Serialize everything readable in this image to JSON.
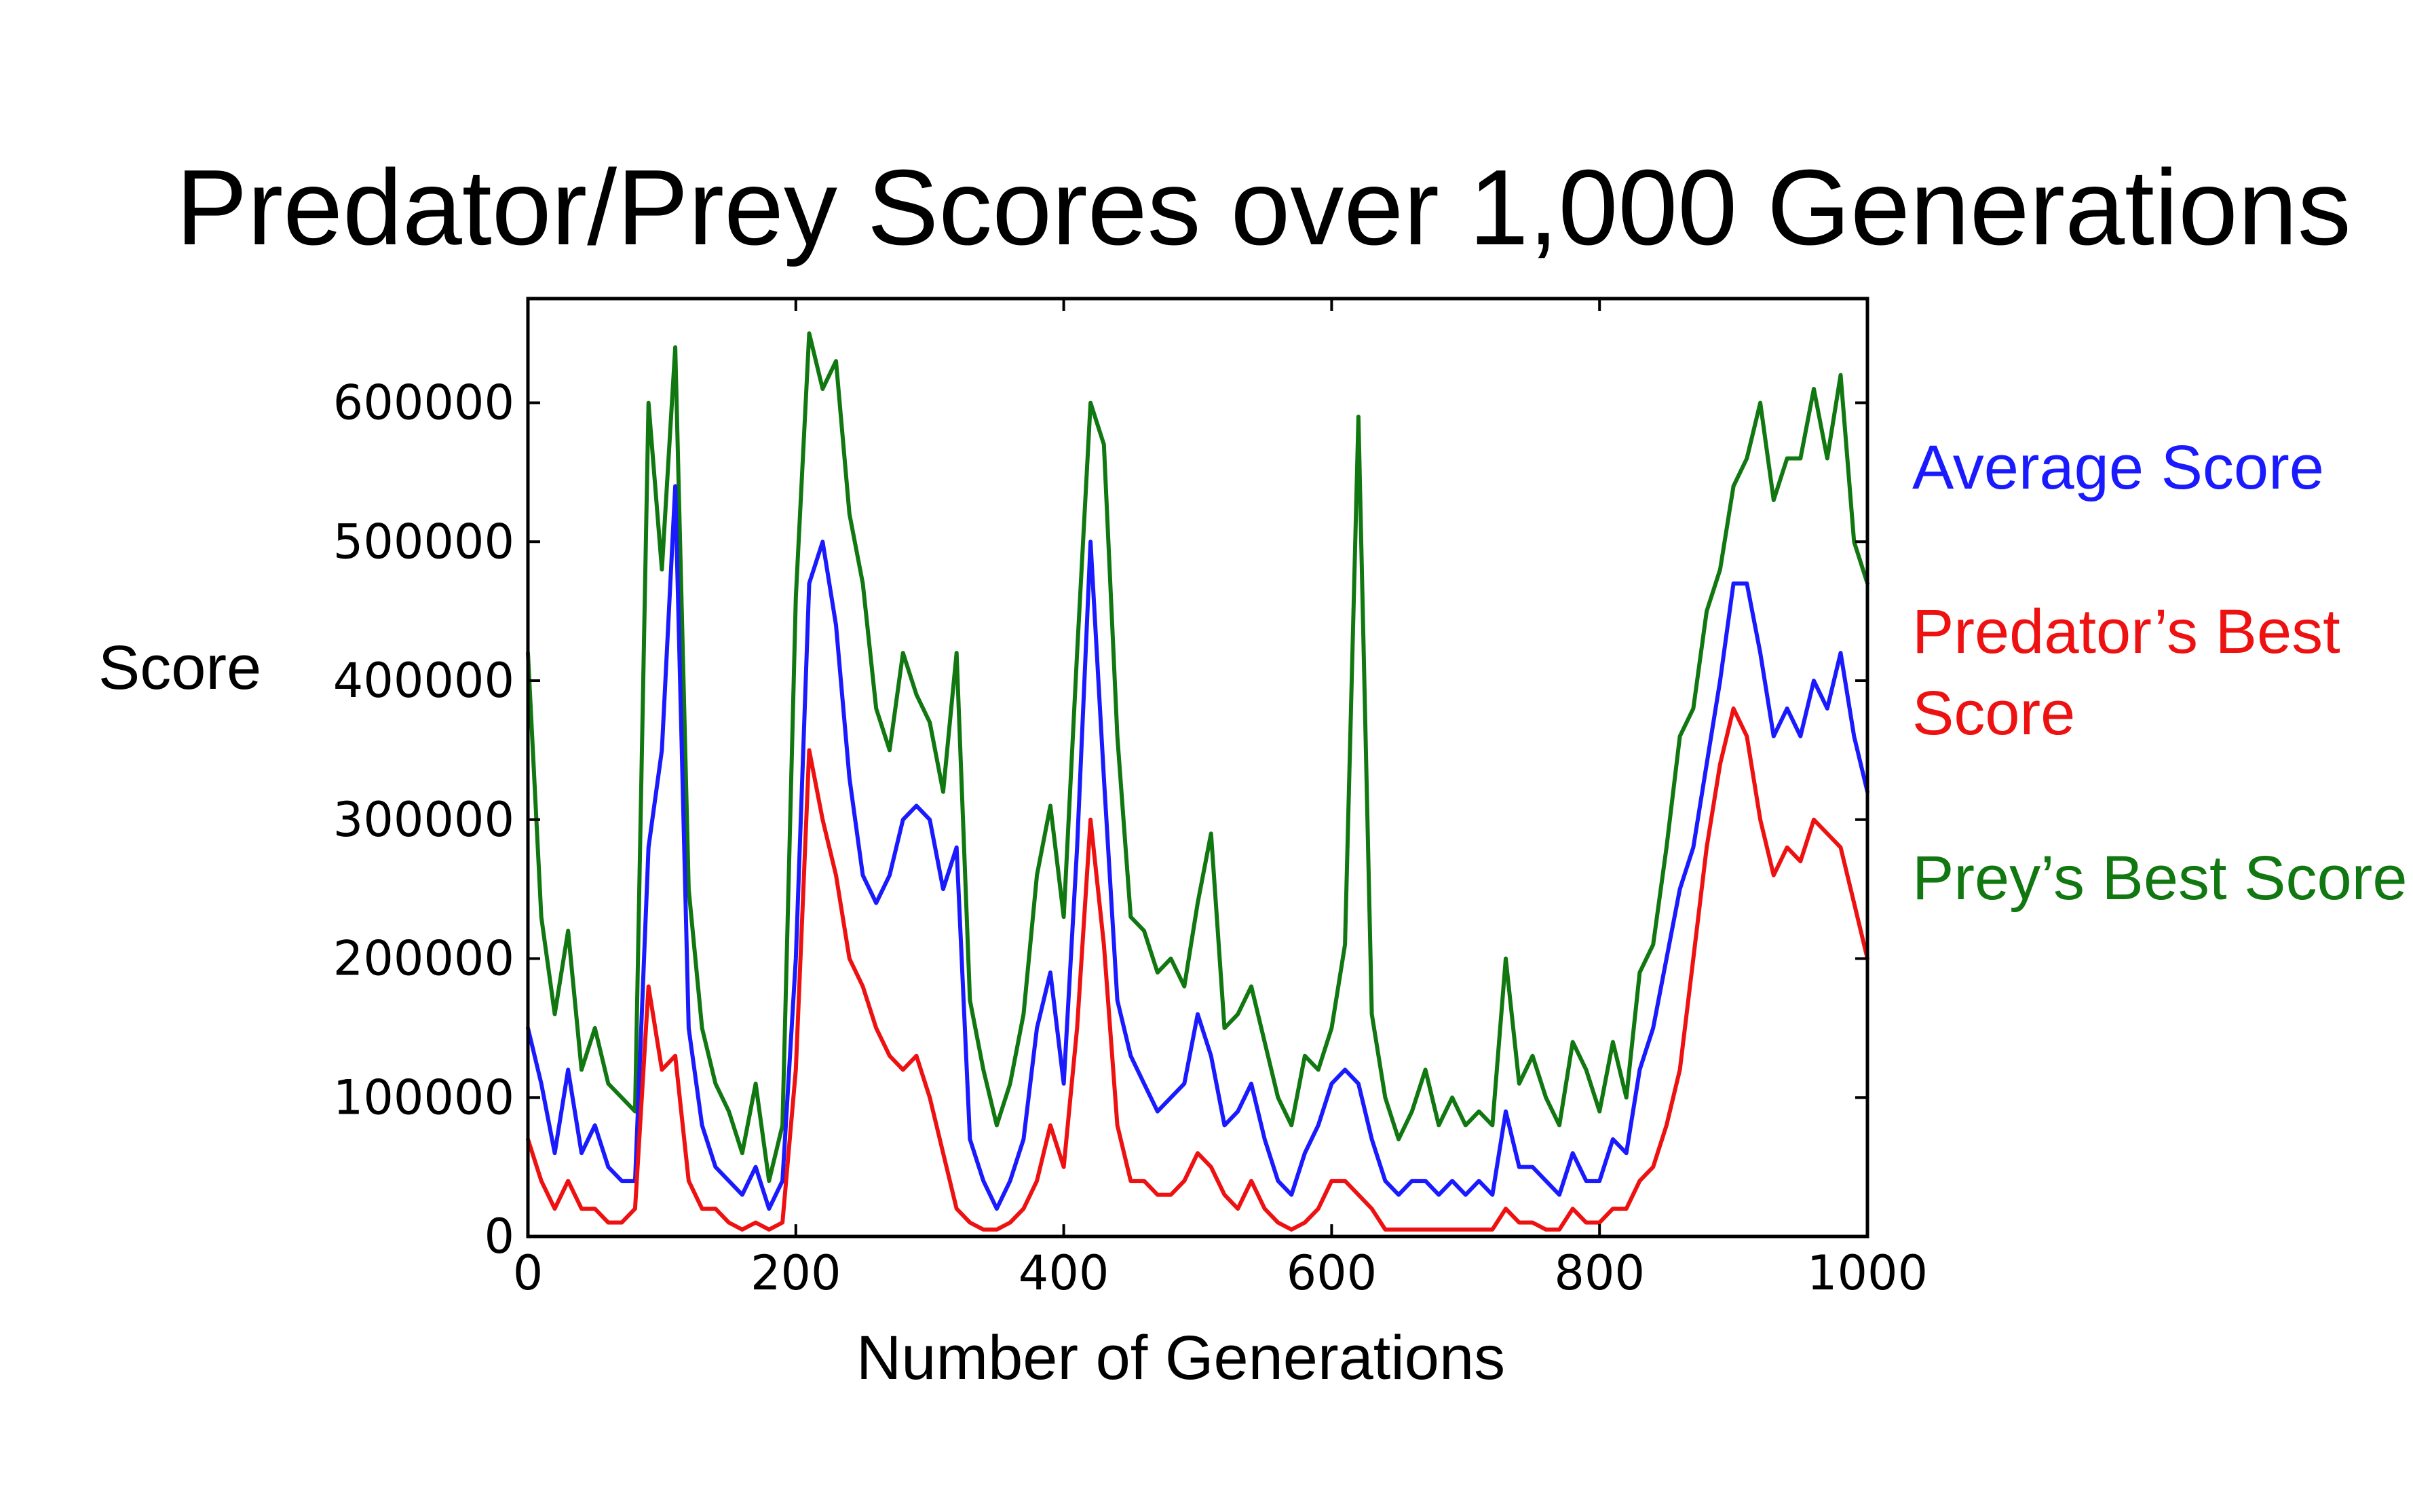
{
  "chart_data": {
    "type": "line",
    "title": "Predator/Prey Scores over 1,000 Generations",
    "xlabel": "Number of Generations",
    "ylabel": "Score",
    "xlim": [
      0,
      1000
    ],
    "ylim": [
      0,
      675000
    ],
    "x_ticks": [
      0,
      200,
      400,
      600,
      800,
      1000
    ],
    "y_ticks": [
      0,
      100000,
      200000,
      300000,
      400000,
      500000,
      600000
    ],
    "x_tick_labels": [
      "0",
      "200",
      "400",
      "600",
      "800",
      "1000"
    ],
    "y_tick_labels": [
      "0",
      "100000",
      "200000",
      "300000",
      "400000",
      "500000",
      "600000"
    ],
    "grid": false,
    "legend_position": "right",
    "legend": [
      {
        "label": "Average Score",
        "color": "#1a1aff"
      },
      {
        "label": "Predator’s Best Score",
        "color": "#ee1111"
      },
      {
        "label": "Prey’s Best Score",
        "color": "#117711"
      }
    ],
    "x": [
      0,
      10,
      20,
      30,
      40,
      50,
      60,
      70,
      80,
      90,
      100,
      110,
      120,
      130,
      140,
      150,
      160,
      170,
      180,
      190,
      200,
      210,
      220,
      230,
      240,
      250,
      260,
      270,
      280,
      290,
      300,
      310,
      320,
      330,
      340,
      350,
      360,
      370,
      380,
      390,
      400,
      410,
      420,
      430,
      440,
      450,
      460,
      470,
      480,
      490,
      500,
      510,
      520,
      530,
      540,
      550,
      560,
      570,
      580,
      590,
      600,
      610,
      620,
      630,
      640,
      650,
      660,
      670,
      680,
      690,
      700,
      710,
      720,
      730,
      740,
      750,
      760,
      770,
      780,
      790,
      800,
      810,
      820,
      830,
      840,
      850,
      860,
      870,
      880,
      890,
      900,
      910,
      920,
      930,
      940,
      950,
      960,
      970,
      980,
      990,
      1000
    ],
    "series": [
      {
        "name": "Prey’s Best Score",
        "color": "#117711",
        "values": [
          420000,
          230000,
          160000,
          220000,
          120000,
          150000,
          110000,
          100000,
          90000,
          600000,
          480000,
          640000,
          250000,
          150000,
          110000,
          90000,
          60000,
          110000,
          40000,
          80000,
          460000,
          650000,
          610000,
          630000,
          520000,
          470000,
          380000,
          350000,
          420000,
          390000,
          370000,
          320000,
          420000,
          170000,
          120000,
          80000,
          110000,
          160000,
          260000,
          310000,
          230000,
          420000,
          600000,
          570000,
          360000,
          230000,
          220000,
          190000,
          200000,
          180000,
          240000,
          290000,
          150000,
          160000,
          180000,
          140000,
          100000,
          80000,
          130000,
          120000,
          150000,
          210000,
          590000,
          160000,
          100000,
          70000,
          90000,
          120000,
          80000,
          100000,
          80000,
          90000,
          80000,
          200000,
          110000,
          130000,
          100000,
          80000,
          140000,
          120000,
          90000,
          140000,
          100000,
          190000,
          210000,
          280000,
          360000,
          380000,
          450000,
          480000,
          540000,
          560000,
          600000,
          530000,
          560000,
          560000,
          610000,
          560000,
          620000,
          500000,
          470000
        ]
      },
      {
        "name": "Average Score",
        "color": "#1a1aff",
        "values": [
          150000,
          110000,
          60000,
          120000,
          60000,
          80000,
          50000,
          40000,
          40000,
          280000,
          350000,
          540000,
          150000,
          80000,
          50000,
          40000,
          30000,
          50000,
          20000,
          40000,
          200000,
          470000,
          500000,
          440000,
          330000,
          260000,
          240000,
          260000,
          300000,
          310000,
          300000,
          250000,
          280000,
          70000,
          40000,
          20000,
          40000,
          70000,
          150000,
          190000,
          110000,
          280000,
          500000,
          330000,
          170000,
          130000,
          110000,
          90000,
          100000,
          110000,
          160000,
          130000,
          80000,
          90000,
          110000,
          70000,
          40000,
          30000,
          60000,
          80000,
          110000,
          120000,
          110000,
          70000,
          40000,
          30000,
          40000,
          40000,
          30000,
          40000,
          30000,
          40000,
          30000,
          90000,
          50000,
          50000,
          40000,
          30000,
          60000,
          40000,
          40000,
          70000,
          60000,
          120000,
          150000,
          200000,
          250000,
          280000,
          340000,
          400000,
          470000,
          470000,
          420000,
          360000,
          380000,
          360000,
          400000,
          380000,
          420000,
          360000,
          320000
        ]
      },
      {
        "name": "Predator’s Best Score",
        "color": "#ee1111",
        "values": [
          70000,
          40000,
          20000,
          40000,
          20000,
          20000,
          10000,
          10000,
          20000,
          180000,
          120000,
          130000,
          40000,
          20000,
          20000,
          10000,
          5000,
          10000,
          5000,
          10000,
          120000,
          350000,
          300000,
          260000,
          200000,
          180000,
          150000,
          130000,
          120000,
          130000,
          100000,
          60000,
          20000,
          10000,
          5000,
          5000,
          10000,
          20000,
          40000,
          80000,
          50000,
          150000,
          300000,
          210000,
          80000,
          40000,
          40000,
          30000,
          30000,
          40000,
          60000,
          50000,
          30000,
          20000,
          40000,
          20000,
          10000,
          5000,
          10000,
          20000,
          40000,
          40000,
          30000,
          20000,
          5000,
          5000,
          5000,
          5000,
          5000,
          5000,
          5000,
          5000,
          5000,
          20000,
          10000,
          10000,
          5000,
          5000,
          20000,
          10000,
          10000,
          20000,
          20000,
          40000,
          50000,
          80000,
          120000,
          200000,
          280000,
          340000,
          380000,
          360000,
          300000,
          260000,
          280000,
          270000,
          300000,
          290000,
          280000,
          240000,
          200000
        ]
      }
    ]
  }
}
